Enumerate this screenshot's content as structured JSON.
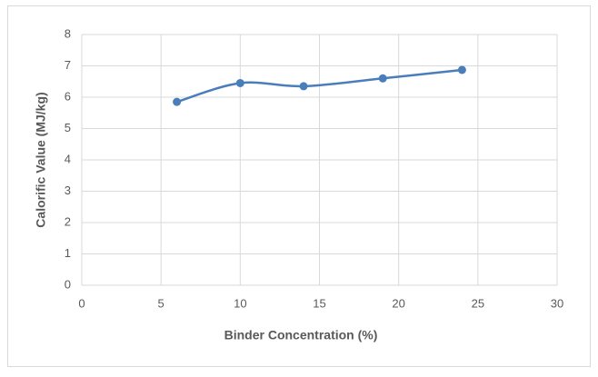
{
  "chart_data": {
    "type": "line",
    "smooth": true,
    "markers": true,
    "grid": true,
    "x_label": "Binder Concentration (%)",
    "y_label": "Calorific Value (MJ/kg)",
    "x": [
      6,
      10,
      14,
      19,
      24
    ],
    "series": [
      {
        "color": "#4a7ebb",
        "values": [
          5.85,
          6.45,
          6.35,
          6.6,
          6.87
        ]
      }
    ],
    "xlim": [
      0,
      30
    ],
    "xticks": [
      0,
      5,
      10,
      15,
      20,
      25,
      30
    ],
    "ylim": [
      0,
      8
    ],
    "yticks": [
      0,
      1,
      2,
      3,
      4,
      5,
      6,
      7,
      8
    ]
  }
}
